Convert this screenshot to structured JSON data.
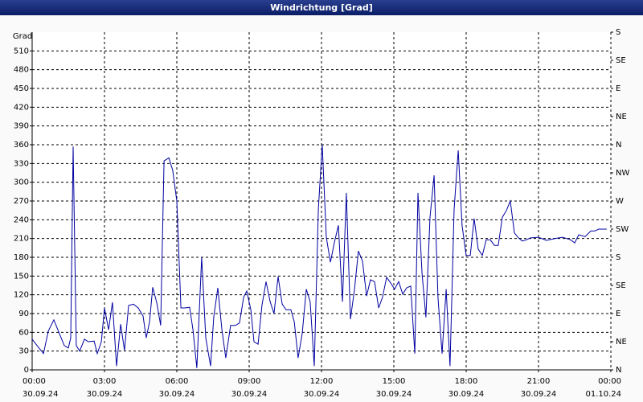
{
  "chart_data": {
    "type": "line",
    "title": "Windrichtung [Grad]",
    "ylabel": "Grad",
    "x": [
      0,
      0.2,
      0.47,
      0.67,
      0.9,
      1.13,
      1.33,
      1.5,
      1.6,
      1.7,
      1.83,
      1.97,
      2.17,
      2.33,
      2.57,
      2.7,
      2.87,
      3.0,
      3.17,
      3.33,
      3.5,
      3.67,
      3.83,
      4.0,
      4.2,
      4.4,
      4.6,
      4.73,
      4.87,
      5.0,
      5.17,
      5.33,
      5.47,
      5.67,
      5.83,
      6.0,
      6.17,
      6.33,
      6.53,
      6.67,
      6.83,
      7.03,
      7.2,
      7.4,
      7.53,
      7.7,
      7.87,
      8.03,
      8.23,
      8.43,
      8.6,
      8.77,
      8.9,
      9.07,
      9.2,
      9.37,
      9.53,
      9.7,
      9.87,
      10.03,
      10.2,
      10.37,
      10.53,
      10.73,
      10.87,
      11.03,
      11.2,
      11.37,
      11.53,
      11.7,
      11.87,
      12.03,
      12.2,
      12.37,
      12.53,
      12.7,
      12.87,
      13.03,
      13.2,
      13.37,
      13.53,
      13.7,
      13.87,
      14.03,
      14.2,
      14.37,
      14.53,
      14.7,
      14.87,
      15.03,
      15.2,
      15.37,
      15.53,
      15.7,
      15.87,
      16.0,
      16.17,
      16.33,
      16.5,
      16.67,
      16.83,
      17.0,
      17.17,
      17.33,
      17.5,
      17.67,
      17.83,
      18.0,
      18.17,
      18.33,
      18.5,
      18.67,
      18.83,
      19.0,
      19.17,
      19.33,
      19.5,
      19.67,
      19.83,
      20.0,
      20.17,
      20.33,
      20.5,
      20.67,
      21.0,
      21.33,
      21.67,
      22.0,
      22.33,
      22.5,
      22.67,
      22.93,
      23.17,
      23.33,
      23.5,
      23.83
    ],
    "series": [
      {
        "color": "#0000a0",
        "values": [
          49,
          39,
          26,
          62,
          80,
          58,
          39,
          35,
          51,
          357,
          39,
          30,
          49,
          45,
          46,
          26,
          45,
          99,
          64,
          108,
          6,
          73,
          31,
          103,
          105,
          99,
          86,
          51,
          77,
          132,
          107,
          71,
          334,
          339,
          319,
          270,
          99,
          99,
          100,
          64,
          3,
          180,
          51,
          6,
          84,
          131,
          64,
          19,
          71,
          71,
          75,
          116,
          126,
          96,
          45,
          41,
          103,
          141,
          109,
          90,
          149,
          105,
          96,
          96,
          77,
          19,
          58,
          129,
          109,
          6,
          257,
          360,
          212,
          172,
          203,
          231,
          109,
          283,
          81,
          129,
          190,
          174,
          118,
          144,
          141,
          99,
          116,
          148,
          139,
          129,
          141,
          121,
          131,
          134,
          26,
          283,
          154,
          84,
          244,
          311,
          116,
          26,
          129,
          6,
          257,
          351,
          231,
          183,
          183,
          242,
          193,
          183,
          208,
          208,
          199,
          199,
          244,
          255,
          270,
          219,
          211,
          206,
          208,
          211,
          212,
          207,
          210,
          212,
          208,
          203,
          216,
          213,
          222,
          222,
          225,
          225
        ]
      }
    ],
    "xlim": [
      0,
      24
    ],
    "xticks": [
      {
        "value": 0,
        "label": "00:00"
      },
      {
        "value": 3,
        "label": "03:00"
      },
      {
        "value": 6,
        "label": "06:00"
      },
      {
        "value": 9,
        "label": "09:00"
      },
      {
        "value": 12,
        "label": "12:00"
      },
      {
        "value": 15,
        "label": "15:00"
      },
      {
        "value": 18,
        "label": "18:00"
      },
      {
        "value": 21,
        "label": "21:00"
      },
      {
        "value": 24,
        "label": "00:00"
      }
    ],
    "xtick_dates": [
      "30.09.24",
      "30.09.24",
      "30.09.24",
      "30.09.24",
      "30.09.24",
      "30.09.24",
      "30.09.24",
      "30.09.24",
      "01.10.24"
    ],
    "ylim": [
      0,
      540
    ],
    "yticks": [
      0,
      30,
      60,
      90,
      120,
      150,
      180,
      210,
      240,
      270,
      300,
      330,
      360,
      390,
      420,
      450,
      480,
      510
    ],
    "y2lim": [
      0,
      540
    ],
    "y2ticks": [
      {
        "value": 0,
        "label": "N"
      },
      {
        "value": 45,
        "label": "NE"
      },
      {
        "value": 90,
        "label": "E"
      },
      {
        "value": 135,
        "label": "SE"
      },
      {
        "value": 180,
        "label": "S"
      },
      {
        "value": 225,
        "label": "SW"
      },
      {
        "value": 270,
        "label": "W"
      },
      {
        "value": 315,
        "label": "NW"
      },
      {
        "value": 360,
        "label": "N"
      },
      {
        "value": 405,
        "label": "NE"
      },
      {
        "value": 450,
        "label": "E"
      },
      {
        "value": 495,
        "label": "SE"
      },
      {
        "value": 540,
        "label": "S"
      }
    ],
    "grid": true
  }
}
